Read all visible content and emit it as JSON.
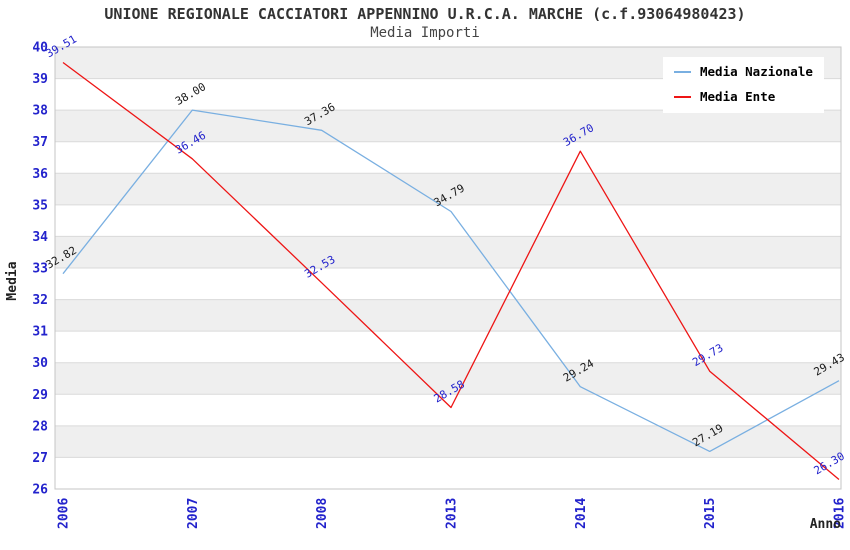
{
  "chart": {
    "title": "UNIONE REGIONALE CACCIATORI APPENNINO U.R.C.A. MARCHE (c.f.93064980423)",
    "subtitle": "Media Importi"
  },
  "chart_data": {
    "type": "line",
    "title": "UNIONE REGIONALE CACCIATORI APPENNINO U.R.C.A. MARCHE (c.f.93064980423)",
    "subtitle": "Media Importi",
    "categories": [
      "2006",
      "2007",
      "2008",
      "2013",
      "2014",
      "2015",
      "2016"
    ],
    "series": [
      {
        "name": "Media Nazionale",
        "color": "#79afe1",
        "label_color": "#1a1a1a",
        "values": [
          32.82,
          38.0,
          37.36,
          34.79,
          29.24,
          27.19,
          29.43
        ]
      },
      {
        "name": "Media Ente",
        "color": "#ee1515",
        "label_color": "#2323cc",
        "values": [
          39.51,
          36.46,
          32.53,
          28.58,
          36.7,
          29.73,
          26.3
        ]
      }
    ],
    "data_label_format": "0.00",
    "xlabel": "Anno",
    "ylabel": "Media",
    "ylim": [
      26,
      40
    ],
    "y_tick_step": 1,
    "x_tick_rotation": -90,
    "data_label_rotation": -30,
    "grid": "horizontal-bands",
    "band_colors": [
      "#efefef",
      "#ffffff"
    ],
    "gridline_color": "#dadada",
    "border_color": "#c5c5c5",
    "axis_tick_label_color": "#2323cc",
    "legend_position": "top-right",
    "legend_background": "#ffffff"
  }
}
